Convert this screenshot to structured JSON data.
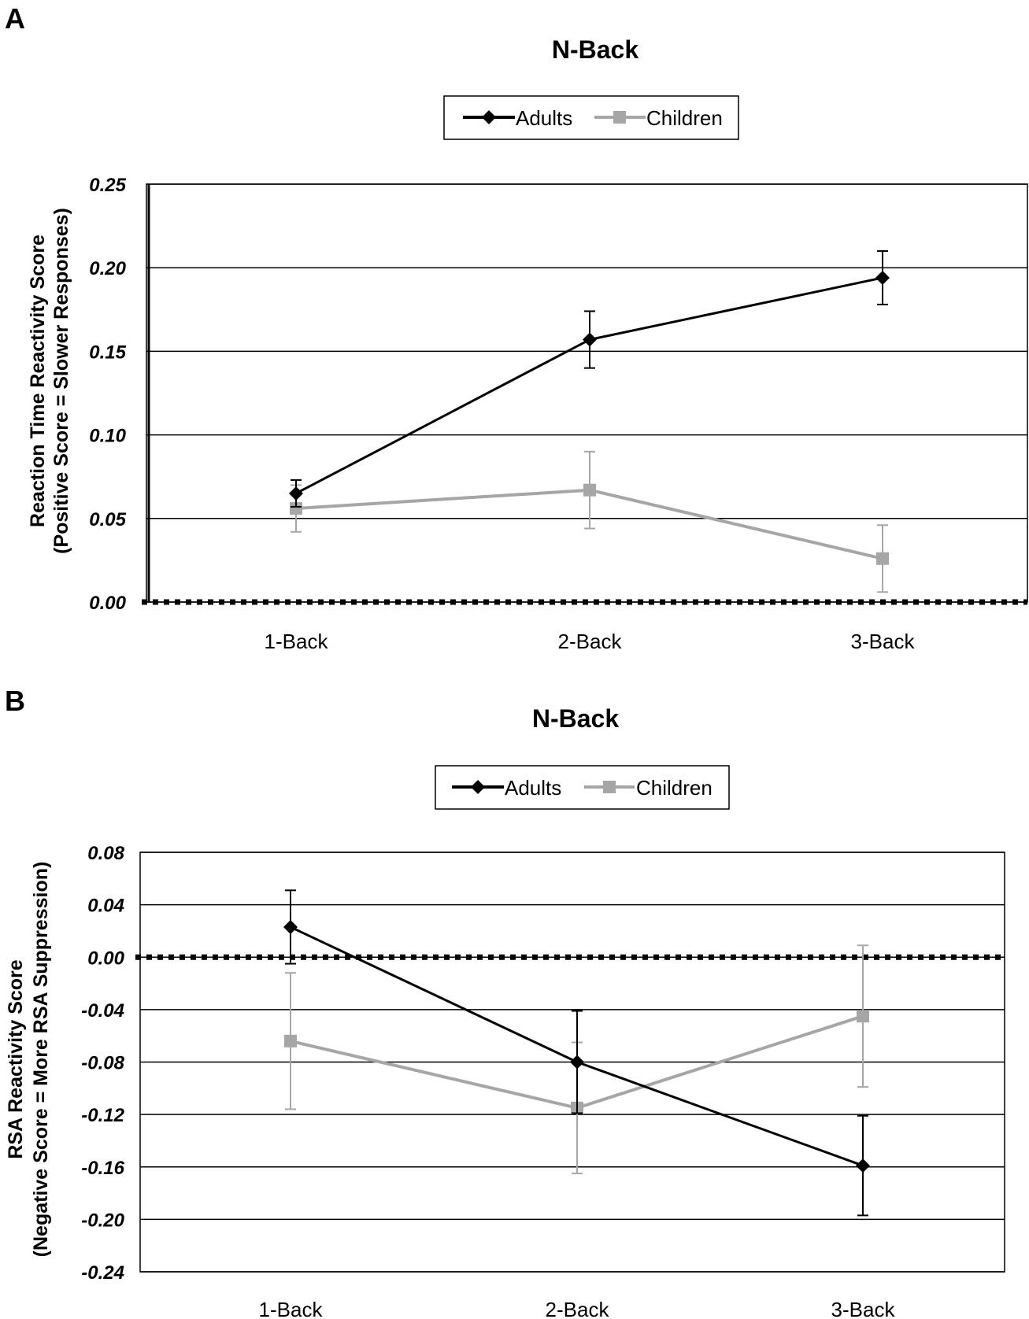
{
  "chart_data": [
    {
      "panel": "A",
      "type": "line",
      "title": "N-Back",
      "categories": [
        "1-Back",
        "2-Back",
        "3-Back"
      ],
      "ylabel_line1": "Reaction Time Reactivity  Score",
      "ylabel_line2": "(Positive Score = Slower Responses)",
      "xlabel": "",
      "ylim": [
        0,
        0.25
      ],
      "yticks": [
        "0.00",
        "0.05",
        "0.10",
        "0.15",
        "0.20",
        "0.25"
      ],
      "grid": true,
      "reference_line": 0,
      "legend_position": "top-center",
      "series": [
        {
          "name": "Adults",
          "color": "#000000",
          "marker": "diamond",
          "values": [
            0.065,
            0.157,
            0.194
          ],
          "errors": [
            0.008,
            0.017,
            0.016
          ]
        },
        {
          "name": "Children",
          "color": "#a6a6a6",
          "marker": "square",
          "values": [
            0.056,
            0.067,
            0.026
          ],
          "errors": [
            0.014,
            0.023,
            0.02
          ]
        }
      ]
    },
    {
      "panel": "B",
      "type": "line",
      "title": "N-Back",
      "categories": [
        "1-Back",
        "2-Back",
        "3-Back"
      ],
      "ylabel_line1": "RSA Reactivity  Score",
      "ylabel_line2": "(Negative  Score = More RSA Suppression)",
      "xlabel": "",
      "ylim": [
        -0.24,
        0.08
      ],
      "yticks": [
        "-0.24",
        "-0.20",
        "-0.16",
        "-0.12",
        "-0.08",
        "-0.04",
        "0.00",
        "0.04",
        "0.08"
      ],
      "grid": true,
      "reference_line": 0,
      "legend_position": "top-center",
      "series": [
        {
          "name": "Adults",
          "color": "#000000",
          "marker": "diamond",
          "values": [
            0.023,
            -0.08,
            -0.159
          ],
          "errors": [
            0.028,
            0.039,
            0.038
          ]
        },
        {
          "name": "Children",
          "color": "#a6a6a6",
          "marker": "square",
          "values": [
            -0.064,
            -0.115,
            -0.045
          ],
          "errors": [
            0.052,
            0.05,
            0.054
          ]
        }
      ]
    }
  ]
}
